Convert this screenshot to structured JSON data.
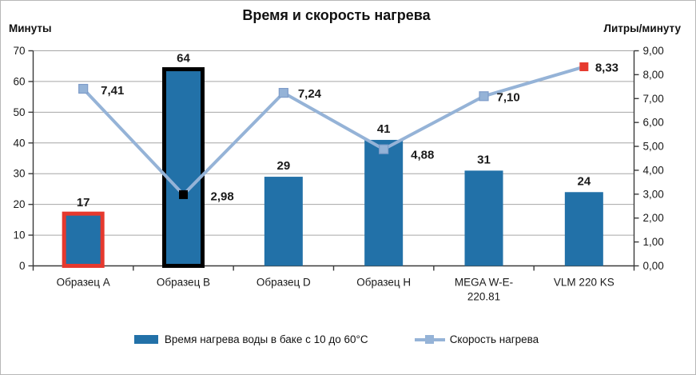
{
  "title": "Время и скорость нагрева",
  "chart_data": {
    "type": "combo (bar + line)",
    "title": "Время и скорость нагрева",
    "categories": [
      "Образец A",
      "Образец B",
      "Образец D",
      "Образец H",
      "MEGA W-E-\n220.81",
      "VLM 220 KS"
    ],
    "left_axis": {
      "title": "Минуты",
      "min": 0,
      "max": 70,
      "ticks": [
        0,
        10,
        20,
        30,
        40,
        50,
        60,
        70
      ]
    },
    "right_axis": {
      "title": "Литры/минуту",
      "min": 0,
      "max": 9,
      "tick_values": [
        0,
        1,
        2,
        3,
        4,
        5,
        6,
        7,
        8,
        9
      ],
      "tick_labels": [
        "0,00",
        "1,00",
        "2,00",
        "3,00",
        "4,00",
        "5,00",
        "6,00",
        "7,00",
        "8,00",
        "9,00"
      ]
    },
    "grid": true,
    "legend_position": "bottom",
    "series": [
      {
        "name": "Время нагрева воды в баке с 10 до 60°C",
        "type": "bar",
        "axis": "left",
        "values": [
          17,
          64,
          29,
          41,
          31,
          24
        ],
        "value_labels": [
          "17",
          "64",
          "29",
          "41",
          "31",
          "24"
        ],
        "color": "#2271A8",
        "highlighted_bars": [
          {
            "index": 0,
            "outline_color": "#E6392E"
          },
          {
            "index": 1,
            "outline_color": "#000000"
          }
        ]
      },
      {
        "name": "Скорость нагрева",
        "type": "line",
        "axis": "right",
        "values": [
          7.41,
          2.98,
          7.24,
          4.88,
          7.1,
          8.33
        ],
        "value_labels": [
          "7,41",
          "2,98",
          "7,24",
          "4,88",
          "7,10",
          "8,33"
        ],
        "color": "#95B3D7",
        "marker_border_color": "#7E9CC9",
        "marker_overrides": {
          "1": "#000000",
          "5": "#E6392E"
        }
      }
    ],
    "colors": {
      "gridline": "#A6A6A6",
      "axis": "#3a3a3a",
      "bar_fill": "#2271A8",
      "line": "#95B3D7",
      "highlight_red": "#E6392E",
      "highlight_black": "#000000"
    }
  }
}
